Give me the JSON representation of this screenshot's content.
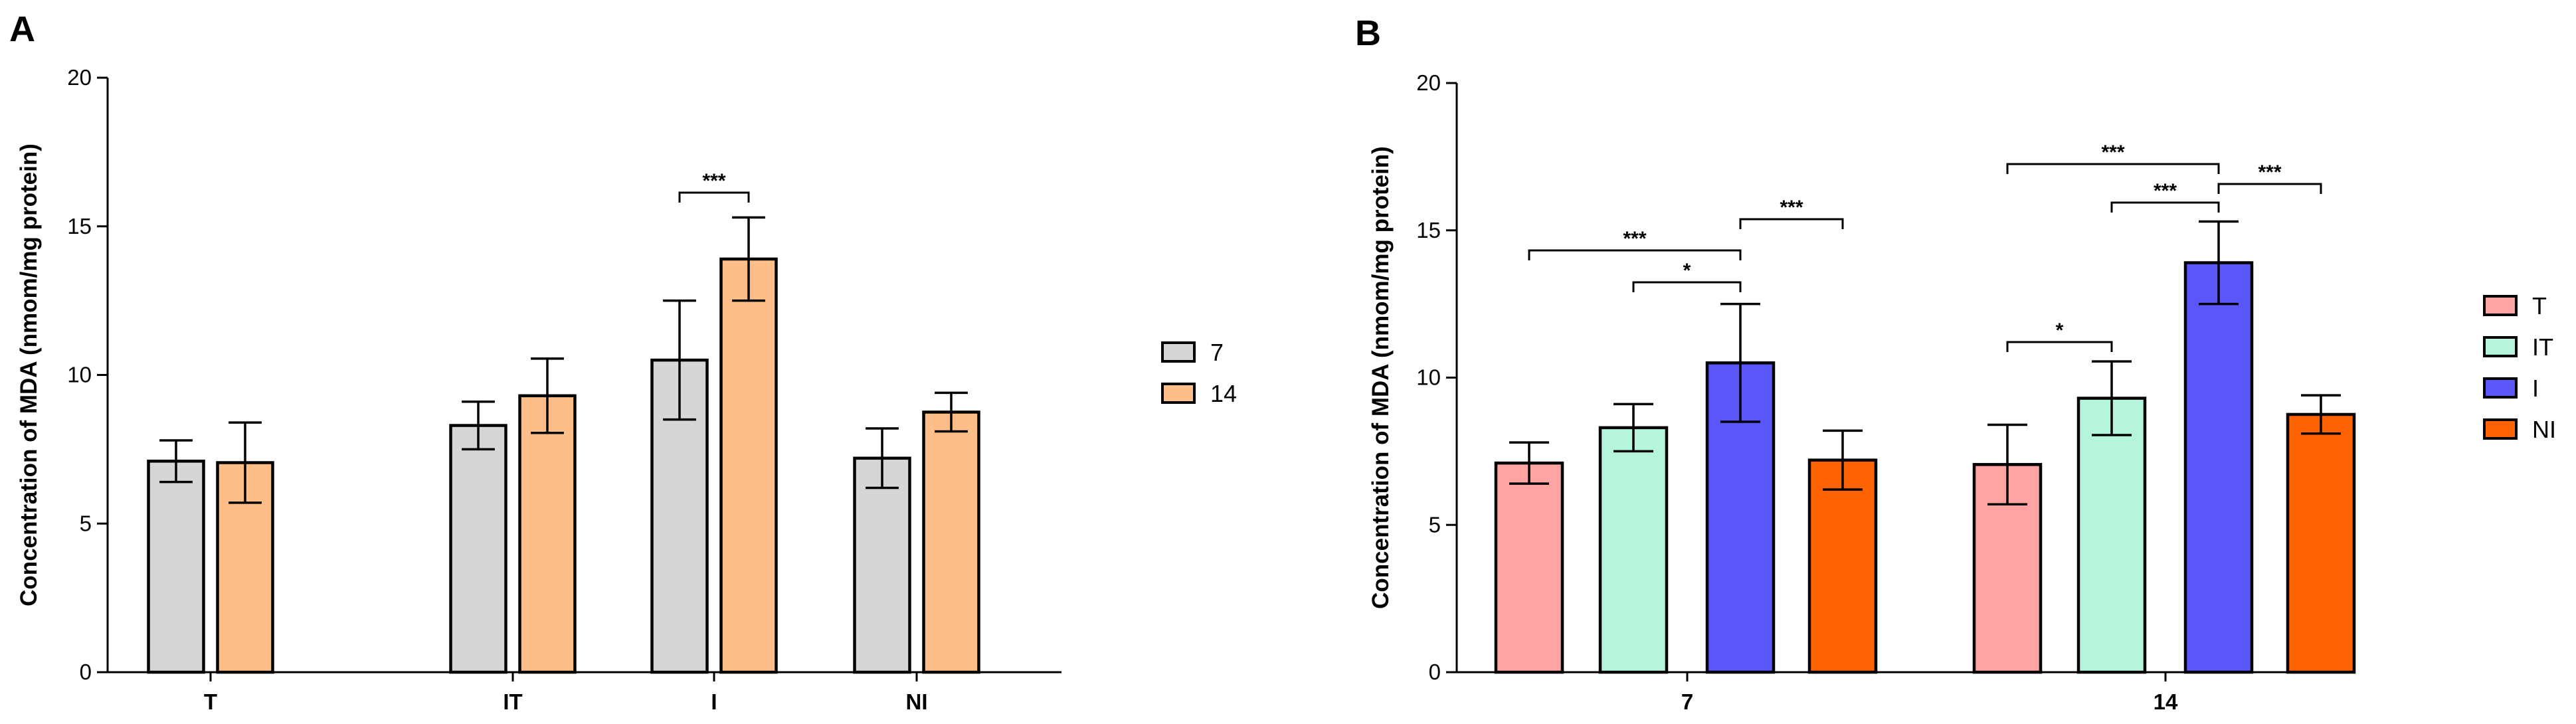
{
  "panel_labels": [
    "A",
    "B"
  ],
  "colors": {
    "day7": "#d6d6d6",
    "day14": "#fdbf87",
    "T": "#ffa3a3",
    "IT": "#b5f5dc",
    "I": "#5957f7",
    "NI": "#ff6200"
  },
  "chart_data": [
    {
      "panel": "A",
      "type": "bar",
      "ylabel": "Concentration of MDA (nmom/mg protein)",
      "ylim": [
        0,
        20
      ],
      "yticks": [
        "0",
        "5",
        "10",
        "15",
        "20"
      ],
      "categories": [
        "T",
        "IT",
        "I",
        "NI"
      ],
      "series": [
        {
          "name": "7",
          "color": "#d6d6d6",
          "values": [
            7.1,
            8.3,
            10.5,
            7.2
          ],
          "errors": [
            0.7,
            0.8,
            2.0,
            1.0
          ]
        },
        {
          "name": "14",
          "color": "#fdbf87",
          "values": [
            7.05,
            9.3,
            13.9,
            8.75
          ],
          "errors": [
            1.35,
            1.25,
            1.4,
            0.65
          ]
        }
      ],
      "legend": [
        "7",
        "14"
      ],
      "significance": [
        {
          "category": "I",
          "from": "7",
          "to": "14",
          "label": "***"
        }
      ]
    },
    {
      "panel": "B",
      "type": "bar",
      "ylabel": "Concentration of MDA (nmom/mg protein)",
      "ylim": [
        0,
        20
      ],
      "yticks": [
        "0",
        "5",
        "10",
        "15",
        "20"
      ],
      "categories": [
        "7",
        "14"
      ],
      "series": [
        {
          "name": "T",
          "color": "#ffa3a3",
          "values": [
            7.1,
            7.05
          ],
          "errors": [
            0.7,
            1.35
          ]
        },
        {
          "name": "IT",
          "color": "#b5f5dc",
          "values": [
            8.3,
            9.3
          ],
          "errors": [
            0.8,
            1.25
          ]
        },
        {
          "name": "I",
          "color": "#5957f7",
          "values": [
            10.5,
            13.9
          ],
          "errors": [
            2.0,
            1.4
          ]
        },
        {
          "name": "NI",
          "color": "#ff6200",
          "values": [
            7.2,
            8.75
          ],
          "errors": [
            1.0,
            0.65
          ]
        }
      ],
      "legend": [
        "T",
        "IT",
        "I",
        "NI"
      ],
      "significance": [
        {
          "category": "7",
          "from": "T",
          "to": "I",
          "label": "***"
        },
        {
          "category": "7",
          "from": "IT",
          "to": "I",
          "label": "*"
        },
        {
          "category": "7",
          "from": "I",
          "to": "NI",
          "label": "***"
        },
        {
          "category": "14",
          "from": "T",
          "to": "I",
          "label": "***"
        },
        {
          "category": "14",
          "from": "T",
          "to": "IT",
          "label": "*"
        },
        {
          "category": "14",
          "from": "IT",
          "to": "I",
          "label": "***"
        },
        {
          "category": "14",
          "from": "I",
          "to": "NI",
          "label": "***"
        }
      ]
    }
  ]
}
